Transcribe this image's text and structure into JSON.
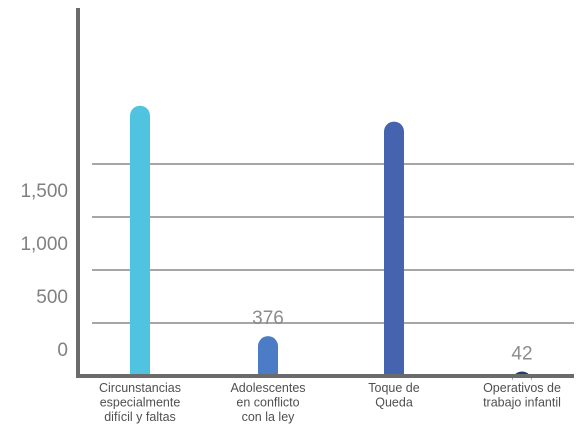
{
  "chart_data": {
    "type": "bar",
    "categories": [
      [
        "Circunstancias",
        "especialmente",
        "difícil y faltas"
      ],
      [
        "Adolescentes",
        "en conflicto",
        "con la ley"
      ],
      [
        "Toque de",
        "Queda"
      ],
      [
        "Operativos de",
        "trabajo infantil"
      ]
    ],
    "values": [
      2550,
      376,
      2400,
      42
    ],
    "data_labels": [
      null,
      "376",
      null,
      "42"
    ],
    "yticks": [
      {
        "value": 0,
        "label": "0"
      },
      {
        "value": 500,
        "label": "500"
      },
      {
        "value": 1000,
        "label": "1,000"
      },
      {
        "value": 1500,
        "label": "1,500"
      },
      {
        "value": 2000,
        "label": ""
      }
    ],
    "ylim": [
      0,
      3000
    ],
    "grid": true,
    "title": "",
    "xlabel": "",
    "ylabel": "",
    "colors": [
      "#4FC3DF",
      "#4C7CC6",
      "#4563AE",
      "#273A78"
    ],
    "gridline_color": "#a6a6a6",
    "axis_color": "#6b6b6b"
  }
}
